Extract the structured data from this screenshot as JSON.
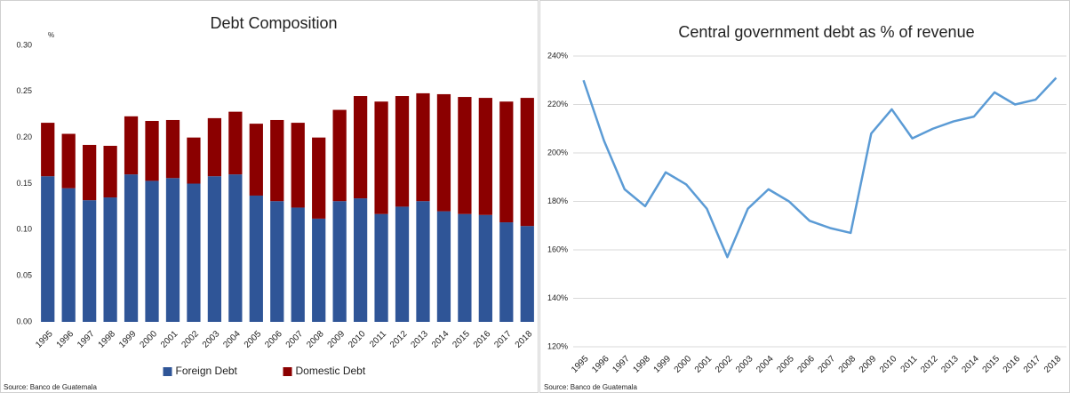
{
  "chart_data": [
    {
      "type": "bar",
      "stacked": true,
      "title": "Debt Composition",
      "y_unit": "%",
      "categories": [
        "1995",
        "1996",
        "1997",
        "1998",
        "1999",
        "2000",
        "2001",
        "2002",
        "2003",
        "2004",
        "2005",
        "2006",
        "2007",
        "2008",
        "2009",
        "2010",
        "2011",
        "2012",
        "2013",
        "2014",
        "2015",
        "2016",
        "2017",
        "2018"
      ],
      "series": [
        {
          "name": "Foreign Debt",
          "color": "#2f5597",
          "values": [
            0.158,
            0.145,
            0.132,
            0.135,
            0.16,
            0.153,
            0.156,
            0.15,
            0.158,
            0.16,
            0.137,
            0.131,
            0.124,
            0.112,
            0.131,
            0.134,
            0.117,
            0.125,
            0.131,
            0.12,
            0.117,
            0.116,
            0.108,
            0.104
          ]
        },
        {
          "name": "Domestic Debt",
          "color": "#8b0000",
          "values": [
            0.058,
            0.059,
            0.06,
            0.056,
            0.063,
            0.065,
            0.063,
            0.05,
            0.063,
            0.068,
            0.078,
            0.088,
            0.092,
            0.088,
            0.099,
            0.111,
            0.122,
            0.12,
            0.117,
            0.127,
            0.127,
            0.127,
            0.131,
            0.139
          ]
        }
      ],
      "ylim": [
        0,
        0.3
      ],
      "yticks": [
        {
          "value": 0,
          "label": "0.00"
        },
        {
          "value": 0.05,
          "label": "0.05"
        },
        {
          "value": 0.1,
          "label": "0.10"
        },
        {
          "value": 0.15,
          "label": "0.15"
        },
        {
          "value": 0.2,
          "label": "0.20"
        },
        {
          "value": 0.25,
          "label": "0.25"
        },
        {
          "value": 0.3,
          "label": "0.30"
        }
      ],
      "grid": false,
      "legend": "bottom",
      "source": "Source: Banco de Guatemala"
    },
    {
      "type": "line",
      "title": "Central government debt as % of revenue",
      "categories": [
        "1995",
        "1996",
        "1997",
        "1998",
        "1999",
        "2000",
        "2001",
        "2002",
        "2003",
        "2004",
        "2005",
        "2006",
        "2007",
        "2008",
        "2009",
        "2010",
        "2011",
        "2012",
        "2013",
        "2014",
        "2015",
        "2016",
        "2017",
        "2018"
      ],
      "series": [
        {
          "color": "#5b9bd5",
          "values": [
            230,
            205,
            185,
            178,
            192,
            187,
            177,
            157,
            177,
            185,
            180,
            172,
            169,
            167,
            208,
            218,
            206,
            210,
            213,
            215,
            225,
            220,
            222,
            231
          ]
        }
      ],
      "ylim": [
        120,
        240
      ],
      "yticks": [
        {
          "value": 120,
          "label": "120%"
        },
        {
          "value": 140,
          "label": "140%"
        },
        {
          "value": 160,
          "label": "160%"
        },
        {
          "value": 180,
          "label": "180%"
        },
        {
          "value": 200,
          "label": "200%"
        },
        {
          "value": 220,
          "label": "220%"
        },
        {
          "value": 240,
          "label": "240%"
        }
      ],
      "grid": true,
      "source": "Source: Banco de Guatemala"
    }
  ]
}
